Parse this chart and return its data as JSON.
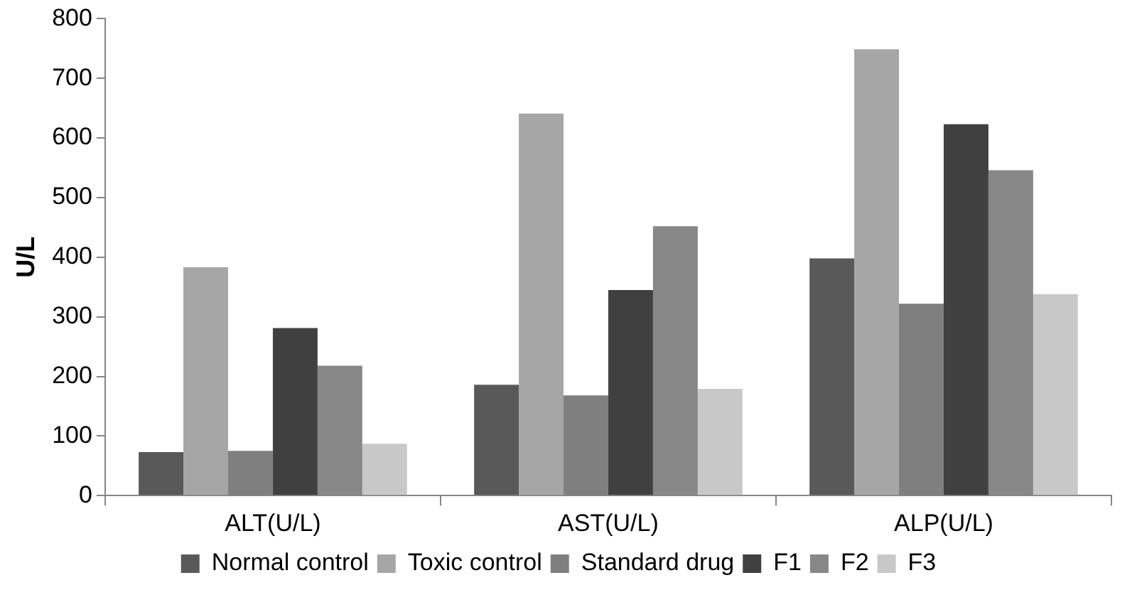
{
  "chart_data": {
    "type": "bar",
    "ylabel": "U/L",
    "categories": [
      "ALT(U/L)",
      "AST(U/L)",
      "ALP(U/L)"
    ],
    "ylim": [
      0,
      800
    ],
    "yticks": [
      0,
      100,
      200,
      300,
      400,
      500,
      600,
      700,
      800
    ],
    "grid": false,
    "legend": "bottom",
    "series": [
      {
        "name": "Normal control",
        "color": "#595959",
        "values": [
          73,
          186,
          398
        ]
      },
      {
        "name": "Toxic control",
        "color": "#a6a6a6",
        "values": [
          383,
          641,
          749
        ]
      },
      {
        "name": "Standard drug",
        "color": "#7f7f7f",
        "values": [
          75,
          168,
          322
        ]
      },
      {
        "name": "F1",
        "color": "#404040",
        "values": [
          281,
          345,
          623
        ]
      },
      {
        "name": "F2",
        "color": "#878787",
        "values": [
          218,
          452,
          546
        ]
      },
      {
        "name": "F3",
        "color": "#c8c8c8",
        "values": [
          87,
          179,
          338
        ]
      }
    ]
  }
}
